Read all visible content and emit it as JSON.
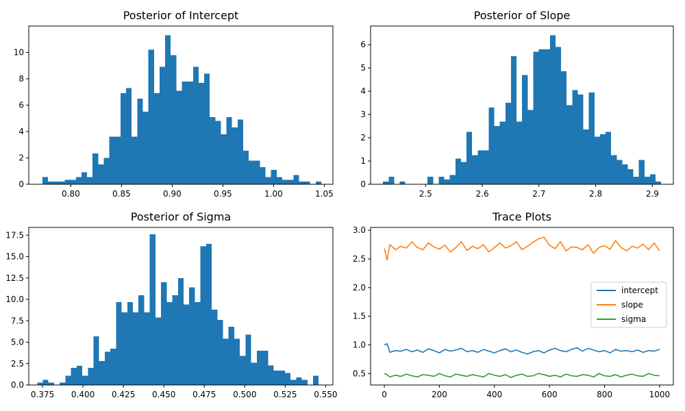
{
  "chart_data": [
    {
      "type": "bar",
      "title": "Posterior of Intercept",
      "xlabel": "",
      "ylabel": "",
      "xlim": [
        0.7585,
        1.0585
      ],
      "ylim": [
        0,
        12
      ],
      "xticks": [
        0.8,
        0.85,
        0.9,
        0.95,
        1.0,
        1.05
      ],
      "xtick_labels": [
        "0.80",
        "0.85",
        "0.90",
        "0.95",
        "1.00",
        "1.05"
      ],
      "yticks": [
        0,
        2,
        4,
        6,
        8,
        10
      ],
      "ytick_labels": [
        "0",
        "2",
        "4",
        "6",
        "8",
        "10"
      ],
      "bin_start": 0.772,
      "bin_width": 0.0055,
      "values": [
        0.55,
        0.2,
        0.2,
        0.2,
        0.35,
        0.35,
        0.55,
        0.9,
        0.55,
        2.35,
        1.5,
        2.0,
        3.6,
        3.6,
        6.9,
        7.3,
        3.6,
        6.5,
        5.5,
        10.2,
        6.9,
        8.9,
        11.3,
        9.8,
        7.1,
        7.8,
        7.8,
        8.9,
        7.7,
        8.4,
        5.1,
        4.8,
        3.8,
        5.1,
        4.3,
        4.9,
        2.55,
        1.8,
        1.8,
        1.3,
        0.55,
        1.1,
        0.55,
        0.35,
        0.35,
        0.7,
        0.2,
        0.2,
        0.0,
        0.2
      ]
    },
    {
      "type": "bar",
      "title": "Posterior of Slope",
      "xlabel": "",
      "ylabel": "",
      "xlim": [
        2.403,
        2.937
      ],
      "ylim": [
        0,
        6.8
      ],
      "xticks": [
        2.5,
        2.6,
        2.7,
        2.8,
        2.9
      ],
      "xtick_labels": [
        "2.5",
        "2.6",
        "2.7",
        "2.8",
        "2.9"
      ],
      "yticks": [
        0,
        1,
        2,
        3,
        4,
        5,
        6
      ],
      "ytick_labels": [
        "0",
        "1",
        "2",
        "3",
        "4",
        "5",
        "6"
      ],
      "bin_start": 2.425,
      "bin_width": 0.00981,
      "values": [
        0.12,
        0.32,
        0.0,
        0.12,
        0.0,
        0.0,
        0.0,
        0.0,
        0.32,
        0.0,
        0.32,
        0.2,
        0.4,
        1.1,
        0.95,
        2.25,
        1.25,
        1.45,
        1.45,
        3.3,
        2.5,
        2.7,
        3.5,
        5.5,
        2.7,
        4.7,
        3.2,
        5.7,
        5.8,
        5.8,
        6.4,
        5.9,
        4.85,
        3.4,
        4.05,
        3.85,
        2.35,
        3.95,
        2.05,
        2.15,
        2.25,
        1.25,
        1.05,
        0.85,
        0.65,
        0.32,
        1.05,
        0.32,
        0.42,
        0.12
      ]
    },
    {
      "type": "bar",
      "title": "Posterior of Sigma",
      "xlabel": "",
      "ylabel": "",
      "xlim": [
        0.3665,
        0.5545
      ],
      "ylim": [
        0,
        18.4
      ],
      "xticks": [
        0.375,
        0.4,
        0.425,
        0.45,
        0.475,
        0.5,
        0.525,
        0.55
      ],
      "xtick_labels": [
        "0.375",
        "0.400",
        "0.425",
        "0.450",
        "0.475",
        "0.500",
        "0.525",
        "0.550"
      ],
      "yticks": [
        0,
        2.5,
        5.0,
        7.5,
        10.0,
        12.5,
        15.0,
        17.5
      ],
      "ytick_labels": [
        "0.0",
        "2.5",
        "5.0",
        "7.5",
        "10.0",
        "12.5",
        "15.0",
        "17.5"
      ],
      "bin_start": 0.3717,
      "bin_width": 0.00348,
      "values": [
        0.3,
        0.6,
        0.3,
        0.0,
        0.3,
        1.1,
        2.0,
        2.25,
        1.1,
        2.0,
        5.7,
        2.8,
        3.9,
        4.25,
        9.7,
        8.5,
        9.7,
        8.5,
        10.5,
        8.5,
        17.6,
        7.9,
        12.0,
        9.7,
        10.5,
        12.5,
        9.4,
        11.4,
        9.7,
        16.2,
        16.5,
        8.8,
        7.6,
        5.4,
        6.8,
        5.4,
        3.4,
        5.9,
        2.6,
        4.0,
        4.0,
        2.3,
        1.7,
        1.7,
        1.4,
        0.6,
        0.9,
        0.6,
        0.0,
        1.1
      ]
    },
    {
      "type": "line",
      "title": "Trace Plots",
      "xlabel": "",
      "ylabel": "",
      "xlim": [
        -50,
        1050
      ],
      "ylim": [
        0.3,
        3.05
      ],
      "xticks": [
        0,
        200,
        400,
        600,
        800,
        1000
      ],
      "xtick_labels": [
        "0",
        "200",
        "400",
        "600",
        "800",
        "1000"
      ],
      "yticks": [
        0.5,
        1.0,
        1.5,
        2.0,
        2.5,
        3.0
      ],
      "ytick_labels": [
        "0.5",
        "1.0",
        "1.5",
        "2.0",
        "2.5",
        "3.0"
      ],
      "legend_position": "center-right",
      "legend_title": "",
      "series": [
        {
          "name": "intercept",
          "color": "#1f77b4",
          "x": [
            0,
            10,
            20,
            40,
            60,
            80,
            100,
            120,
            140,
            160,
            180,
            200,
            220,
            240,
            260,
            280,
            300,
            320,
            340,
            360,
            380,
            400,
            420,
            440,
            460,
            480,
            500,
            520,
            540,
            560,
            580,
            600,
            620,
            640,
            660,
            680,
            700,
            720,
            740,
            760,
            780,
            800,
            820,
            840,
            860,
            880,
            900,
            920,
            940,
            960,
            980,
            1000
          ],
          "values": [
            1.0,
            1.02,
            0.87,
            0.9,
            0.89,
            0.92,
            0.88,
            0.91,
            0.87,
            0.93,
            0.9,
            0.86,
            0.92,
            0.89,
            0.91,
            0.94,
            0.88,
            0.9,
            0.87,
            0.92,
            0.89,
            0.86,
            0.9,
            0.93,
            0.88,
            0.91,
            0.87,
            0.84,
            0.88,
            0.9,
            0.86,
            0.91,
            0.94,
            0.9,
            0.88,
            0.92,
            0.95,
            0.89,
            0.94,
            0.91,
            0.88,
            0.9,
            0.86,
            0.92,
            0.89,
            0.9,
            0.88,
            0.91,
            0.87,
            0.9,
            0.89,
            0.92
          ]
        },
        {
          "name": "slope",
          "color": "#ff7f0e",
          "x": [
            0,
            10,
            20,
            40,
            60,
            80,
            100,
            120,
            140,
            160,
            180,
            200,
            220,
            240,
            260,
            280,
            300,
            320,
            340,
            360,
            380,
            400,
            420,
            440,
            460,
            480,
            500,
            520,
            540,
            560,
            580,
            600,
            620,
            640,
            660,
            680,
            700,
            720,
            740,
            760,
            780,
            800,
            820,
            840,
            860,
            880,
            900,
            920,
            940,
            960,
            980,
            1000
          ],
          "values": [
            2.68,
            2.48,
            2.75,
            2.66,
            2.72,
            2.69,
            2.8,
            2.7,
            2.66,
            2.78,
            2.71,
            2.67,
            2.74,
            2.62,
            2.7,
            2.8,
            2.65,
            2.72,
            2.68,
            2.75,
            2.62,
            2.7,
            2.78,
            2.69,
            2.73,
            2.8,
            2.66,
            2.72,
            2.79,
            2.85,
            2.88,
            2.74,
            2.68,
            2.8,
            2.64,
            2.71,
            2.7,
            2.66,
            2.75,
            2.6,
            2.7,
            2.73,
            2.67,
            2.82,
            2.7,
            2.64,
            2.72,
            2.69,
            2.76,
            2.66,
            2.78,
            2.64
          ]
        },
        {
          "name": "sigma",
          "color": "#2ca02c",
          "x": [
            0,
            10,
            20,
            40,
            60,
            80,
            100,
            120,
            140,
            160,
            180,
            200,
            220,
            240,
            260,
            280,
            300,
            320,
            340,
            360,
            380,
            400,
            420,
            440,
            460,
            480,
            500,
            520,
            540,
            560,
            580,
            600,
            620,
            640,
            660,
            680,
            700,
            720,
            740,
            760,
            780,
            800,
            820,
            840,
            860,
            880,
            900,
            920,
            940,
            960,
            980,
            1000
          ],
          "values": [
            0.5,
            0.48,
            0.44,
            0.47,
            0.45,
            0.49,
            0.46,
            0.44,
            0.48,
            0.47,
            0.45,
            0.5,
            0.46,
            0.44,
            0.49,
            0.47,
            0.45,
            0.48,
            0.46,
            0.44,
            0.5,
            0.47,
            0.45,
            0.48,
            0.43,
            0.47,
            0.49,
            0.45,
            0.46,
            0.5,
            0.48,
            0.45,
            0.47,
            0.44,
            0.49,
            0.46,
            0.45,
            0.48,
            0.47,
            0.44,
            0.5,
            0.46,
            0.45,
            0.48,
            0.44,
            0.47,
            0.49,
            0.46,
            0.45,
            0.5,
            0.47,
            0.46
          ]
        }
      ]
    }
  ]
}
